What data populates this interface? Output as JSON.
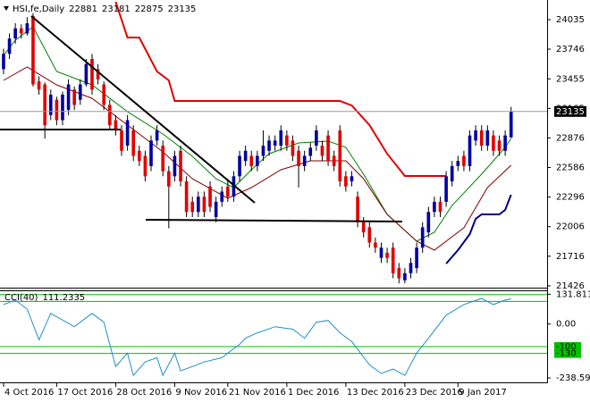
{
  "chart_data": [
    {
      "type": "candlestick",
      "symbol": "HSI,fe,Daily",
      "up_color": "#0000a0",
      "down_color": "#e00000",
      "open": [
        23550,
        23700,
        23850,
        23950,
        23900,
        24070,
        23430,
        23400,
        23100,
        23250,
        23050,
        23150,
        23350,
        23250,
        23400,
        23650,
        23550,
        23400,
        23200,
        23050,
        22950,
        22800,
        22950,
        22750,
        22700,
        22600,
        22850,
        22800,
        22550,
        22500,
        22750,
        22450,
        22250,
        22150,
        22300,
        22400,
        22100,
        22250,
        22400,
        22300,
        22500,
        22650,
        22700,
        22600,
        22700,
        22750,
        22800,
        22800,
        22900,
        22850,
        22750,
        22600,
        22700,
        22800,
        22800,
        22900,
        22700,
        22950,
        22500,
        22450,
        22300,
        22050,
        22000,
        21850,
        21700,
        21750,
        21800,
        21600,
        21480,
        21550,
        21600,
        21800,
        21950,
        22150,
        22250,
        22250,
        22450,
        22600,
        22700,
        22600,
        22850,
        22950,
        22800,
        22900,
        22850,
        22750,
        22881
      ],
      "high": [
        23750,
        23900,
        24000,
        23990,
        24060,
        24100,
        23480,
        23420,
        23350,
        23280,
        23330,
        23450,
        23380,
        23450,
        23650,
        23700,
        23600,
        23430,
        23250,
        23100,
        23000,
        23100,
        23000,
        22800,
        22750,
        22900,
        23000,
        22850,
        22600,
        22750,
        22800,
        22500,
        22300,
        22350,
        22350,
        22450,
        22300,
        22400,
        22450,
        22550,
        22750,
        22800,
        22750,
        22750,
        22950,
        22900,
        22900,
        23000,
        22950,
        22900,
        22800,
        22750,
        22830,
        23000,
        22850,
        22950,
        22750,
        23000,
        22550,
        22550,
        22350,
        22100,
        22050,
        21900,
        21850,
        21800,
        21850,
        21650,
        21600,
        21700,
        21850,
        22050,
        22200,
        22300,
        22300,
        22550,
        22650,
        22700,
        22750,
        22950,
        23000,
        23000,
        23000,
        22950,
        22900,
        22950,
        23181
      ],
      "low": [
        23500,
        23650,
        23800,
        23850,
        23880,
        23380,
        23300,
        22870,
        23050,
        23000,
        23000,
        23100,
        23150,
        23200,
        23380,
        23300,
        23400,
        23150,
        22950,
        22900,
        22700,
        22750,
        22650,
        22600,
        22450,
        22550,
        22800,
        22500,
        21990,
        22450,
        22400,
        22100,
        22100,
        22100,
        22100,
        22150,
        22050,
        22200,
        22250,
        22250,
        22450,
        22600,
        22550,
        22550,
        22650,
        22700,
        22750,
        22750,
        22750,
        22650,
        22390,
        22550,
        22650,
        22750,
        22650,
        22600,
        22550,
        22400,
        22350,
        22400,
        22000,
        21900,
        21800,
        21750,
        21650,
        21650,
        21500,
        21450,
        21450,
        21500,
        21550,
        21750,
        21900,
        22100,
        22100,
        22200,
        22400,
        22550,
        22550,
        22550,
        22800,
        22750,
        22750,
        22700,
        22700,
        22700,
        22875
      ],
      "close": [
        23700,
        23850,
        23950,
        23900,
        24000,
        23400,
        23350,
        23000,
        23300,
        23050,
        23300,
        23400,
        23200,
        23400,
        23600,
        23350,
        23450,
        23200,
        23000,
        22950,
        22750,
        23050,
        22700,
        22650,
        22500,
        22850,
        22950,
        22550,
        22400,
        22700,
        22450,
        22150,
        22150,
        22300,
        22150,
        22200,
        22250,
        22350,
        22300,
        22500,
        22700,
        22750,
        22600,
        22700,
        22800,
        22850,
        22850,
        22950,
        22800,
        22700,
        22600,
        22700,
        22780,
        22950,
        22700,
        22650,
        22600,
        22450,
        22400,
        22500,
        22050,
        21950,
        21850,
        21800,
        21800,
        21700,
        21550,
        21500,
        21550,
        21650,
        21800,
        22000,
        22150,
        22250,
        22150,
        22500,
        22600,
        22650,
        22600,
        22900,
        22950,
        22800,
        22950,
        22750,
        22750,
        22900,
        23135
      ],
      "overlays": [
        {
          "type": "line",
          "color": "#008000",
          "width": 1,
          "x": [
            0,
            2,
            5,
            9,
            15,
            21,
            27,
            32,
            36,
            39,
            42,
            45,
            50,
            55,
            58,
            61,
            65,
            70,
            73,
            76,
            81,
            85,
            86
          ],
          "values": [
            23685,
            23834,
            23965,
            23527,
            23396,
            23133,
            22914,
            22695,
            22476,
            22389,
            22564,
            22721,
            22827,
            22844,
            22783,
            22520,
            22126,
            21863,
            21951,
            22214,
            22520,
            22783,
            22870
          ]
        },
        {
          "type": "line",
          "color": "#800000",
          "width": 1,
          "x": [
            0,
            4,
            9,
            15,
            21,
            27,
            32,
            38,
            42,
            47,
            52,
            58,
            61,
            65,
            70,
            73,
            78,
            82,
            86
          ],
          "values": [
            23440,
            23571,
            23396,
            23264,
            23002,
            22739,
            22476,
            22284,
            22389,
            22564,
            22652,
            22652,
            22476,
            22126,
            21863,
            21776,
            21995,
            22389,
            22608
          ]
        },
        {
          "type": "line",
          "color": "#e00000",
          "width": 2,
          "x": [
            19,
            21,
            23,
            26,
            28,
            29,
            57,
            59,
            62,
            65,
            68,
            75
          ],
          "values": [
            24210,
            23860,
            23860,
            23527,
            23440,
            23238,
            23238,
            23194,
            23002,
            22721,
            22503,
            22503
          ]
        },
        {
          "type": "line",
          "color": "#000080",
          "width": 2,
          "x": [
            75,
            77,
            79,
            80,
            81,
            84,
            85,
            86
          ],
          "values": [
            21644,
            21776,
            21933,
            22082,
            22126,
            22126,
            22170,
            22319
          ]
        }
      ],
      "xlim": [
        -0.6,
        92.1
      ],
      "xticks": [
        {
          "value": 0,
          "label": "4 Oct 2016"
        },
        {
          "value": 9,
          "label": "17 Oct 2016"
        },
        {
          "value": 19,
          "label": "28 Oct 2016"
        },
        {
          "value": 29,
          "label": "9 Nov 2016"
        },
        {
          "value": 38,
          "label": "21 Nov 2016"
        },
        {
          "value": 48,
          "label": "1 Dec 2016"
        },
        {
          "value": 58,
          "label": "13 Dec 2016"
        },
        {
          "value": 68,
          "label": "23 Dec 2016"
        },
        {
          "value": 77,
          "label": "9 Jan 2017"
        }
      ],
      "ylim": [
        21408,
        24228
      ],
      "yticks": [
        24035,
        23746,
        23455,
        23165,
        22876,
        22586,
        22296,
        22006,
        21716,
        21426
      ]
    },
    {
      "type": "line",
      "name": "CCI(40)",
      "color": "#1e90c8",
      "x": [
        0,
        2,
        4,
        6,
        8,
        12,
        15,
        17,
        19,
        21,
        22,
        24,
        26,
        27,
        29,
        30,
        32,
        34,
        37,
        40,
        41,
        43,
        46,
        49,
        51,
        53,
        55,
        57,
        59,
        62,
        64,
        66,
        68,
        70,
        72,
        75,
        78,
        81,
        83,
        85,
        86
      ],
      "values": [
        86,
        106,
        66,
        -70,
        47,
        -12,
        47,
        8,
        -188,
        -129,
        -227,
        -168,
        -149,
        -227,
        -129,
        -207,
        -188,
        -168,
        -149,
        -90,
        -63,
        -39,
        -12,
        -23,
        -63,
        8,
        16,
        -39,
        -78,
        -180,
        -219,
        -199,
        -227,
        -129,
        -63,
        39,
        86,
        113,
        86,
        106,
        111.2335
      ],
      "xlim": [
        -0.6,
        92.1
      ],
      "ylim": [
        -258,
        145
      ],
      "yticks": [
        131.8119,
        {
          "value": 0,
          "label": "0.00"
        },
        -238.593
      ],
      "levels": [
        130,
        100,
        {
          "value": -100,
          "label": "-100"
        },
        {
          "value": -130,
          "label": "-130"
        }
      ],
      "level_color": "#00c000"
    }
  ]
}
